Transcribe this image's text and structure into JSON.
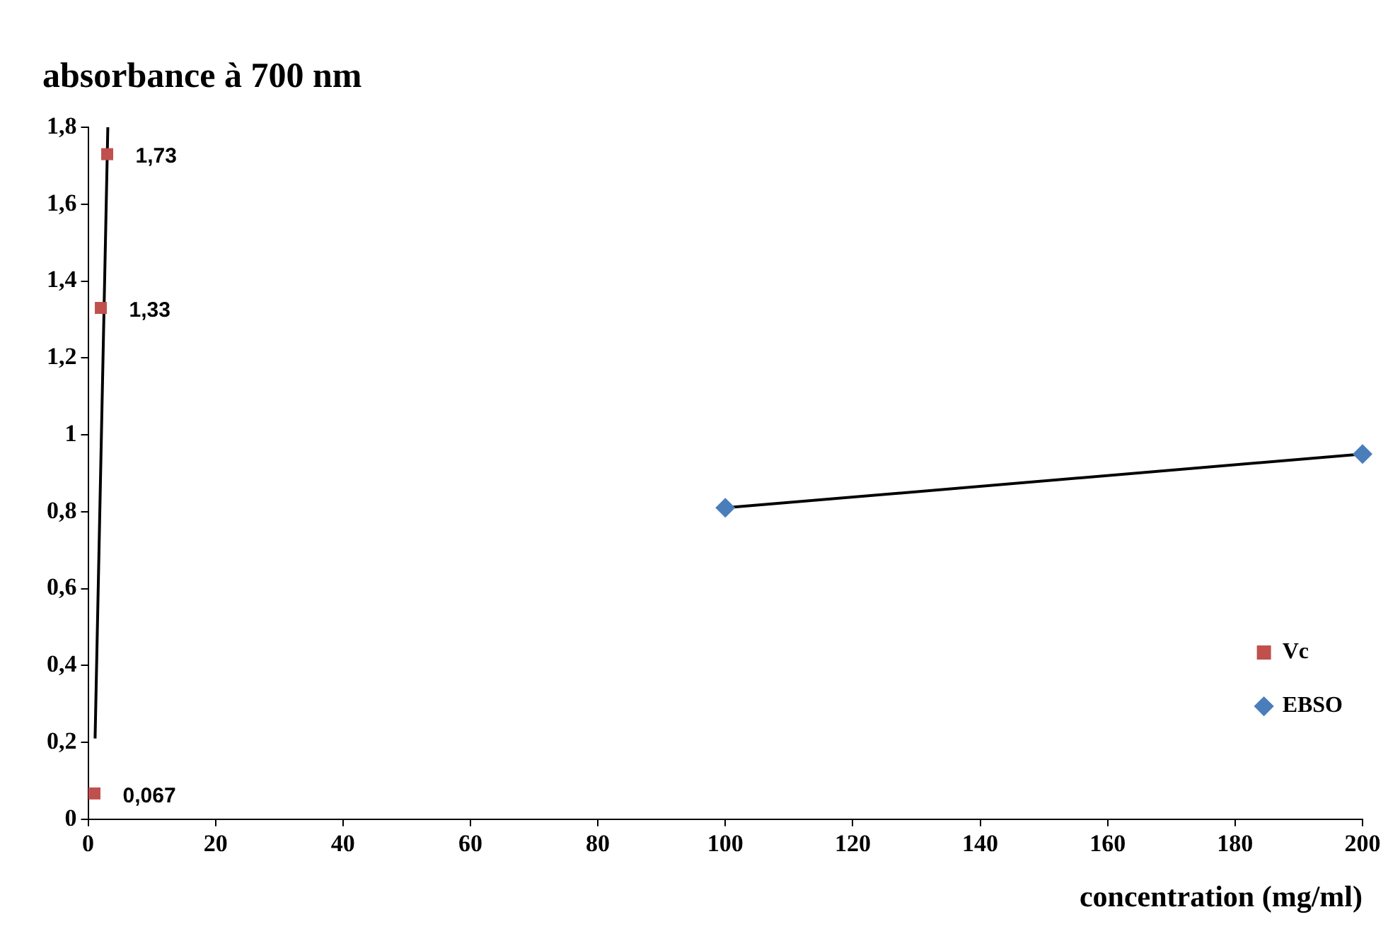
{
  "chart_data": {
    "type": "scatter",
    "title": "absorbance à 700 nm",
    "xlabel": "concentration (mg/ml)",
    "xlim": [
      0,
      200
    ],
    "xticks": [
      0,
      20,
      40,
      60,
      80,
      100,
      120,
      140,
      160,
      180,
      200
    ],
    "ylim": [
      0,
      1.8
    ],
    "yticks": [
      0,
      {
        "value": 0.2,
        "label": "0,2"
      },
      {
        "value": 0.4,
        "label": "0,4"
      },
      {
        "value": 0.6,
        "label": "0,6"
      },
      {
        "value": 0.8,
        "label": "0,8"
      },
      1,
      {
        "value": 1.2,
        "label": "1,2"
      },
      {
        "value": 1.4,
        "label": "1,4"
      },
      {
        "value": 1.6,
        "label": "1,6"
      },
      {
        "value": 1.8,
        "label": "1,8"
      }
    ],
    "grid": false,
    "legend": "right",
    "series": [
      {
        "name": "Vc",
        "type": "scatter",
        "marker": "square",
        "color": "#c0504d",
        "x": [
          1,
          2,
          3
        ],
        "values": [
          0.067,
          1.33,
          1.73
        ],
        "value_labels": [
          "0,067",
          "1,33",
          "1,73"
        ]
      },
      {
        "name": "EBSO",
        "type": "scatter",
        "marker": "diamond",
        "color": "#4a7ebb",
        "x": [
          100,
          200
        ],
        "values": [
          0.81,
          0.95
        ]
      },
      {
        "type": "line",
        "marker": "none",
        "color": "#000000",
        "x": [
          1.1,
          3.1
        ],
        "values": [
          0.21,
          1.8
        ]
      },
      {
        "type": "line",
        "marker": "none",
        "color": "#000000",
        "x": [
          100,
          200
        ],
        "values": [
          0.81,
          0.95
        ]
      }
    ]
  }
}
